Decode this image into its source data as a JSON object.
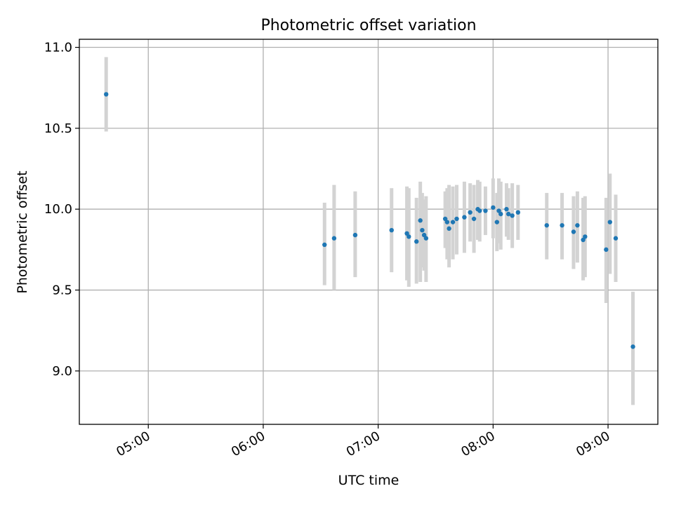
{
  "chart_data": {
    "type": "scatter",
    "title": "Photometric offset variation",
    "xlabel": "UTC time",
    "ylabel": "Photometric offset",
    "x_axis_kind": "time",
    "x_ticks": [
      "05:00",
      "06:00",
      "07:00",
      "08:00",
      "09:00"
    ],
    "y_ticks": [
      "9.0",
      "9.5",
      "10.0",
      "10.5",
      "11.0"
    ],
    "xlim": [
      "04:24",
      "09:26"
    ],
    "ylim": [
      8.67,
      11.05
    ],
    "grid": true,
    "colors": {
      "point": "#1f77b4",
      "errorbar": "#d3d3d3",
      "grid": "#b0b0b0"
    },
    "points": [
      {
        "x": "04:38",
        "y": 10.71,
        "ylo": 10.48,
        "yhi": 10.94
      },
      {
        "x": "06:32",
        "y": 9.78,
        "ylo": 9.53,
        "yhi": 10.04
      },
      {
        "x": "06:37",
        "y": 9.82,
        "ylo": 9.5,
        "yhi": 10.15
      },
      {
        "x": "06:48",
        "y": 9.84,
        "ylo": 9.58,
        "yhi": 10.11
      },
      {
        "x": "07:07",
        "y": 9.87,
        "ylo": 9.61,
        "yhi": 10.13
      },
      {
        "x": "07:15",
        "y": 9.85,
        "ylo": 9.56,
        "yhi": 10.14
      },
      {
        "x": "07:16",
        "y": 9.83,
        "ylo": 9.52,
        "yhi": 10.13
      },
      {
        "x": "07:20",
        "y": 9.8,
        "ylo": 9.54,
        "yhi": 10.07
      },
      {
        "x": "07:22",
        "y": 9.93,
        "ylo": 9.55,
        "yhi": 10.17
      },
      {
        "x": "07:23",
        "y": 9.87,
        "ylo": 9.64,
        "yhi": 10.1
      },
      {
        "x": "07:24",
        "y": 9.84,
        "ylo": 9.62,
        "yhi": 10.06
      },
      {
        "x": "07:25",
        "y": 9.82,
        "ylo": 9.55,
        "yhi": 10.08
      },
      {
        "x": "07:35",
        "y": 9.94,
        "ylo": 9.76,
        "yhi": 10.11
      },
      {
        "x": "07:36",
        "y": 9.92,
        "ylo": 9.69,
        "yhi": 10.13
      },
      {
        "x": "07:37",
        "y": 9.88,
        "ylo": 9.64,
        "yhi": 10.15
      },
      {
        "x": "07:39",
        "y": 9.92,
        "ylo": 9.69,
        "yhi": 10.14
      },
      {
        "x": "07:41",
        "y": 9.94,
        "ylo": 9.72,
        "yhi": 10.15
      },
      {
        "x": "07:45",
        "y": 9.95,
        "ylo": 9.73,
        "yhi": 10.17
      },
      {
        "x": "07:48",
        "y": 9.98,
        "ylo": 9.8,
        "yhi": 10.16
      },
      {
        "x": "07:50",
        "y": 9.94,
        "ylo": 9.73,
        "yhi": 10.15
      },
      {
        "x": "07:52",
        "y": 10.0,
        "ylo": 9.81,
        "yhi": 10.18
      },
      {
        "x": "07:53",
        "y": 9.99,
        "ylo": 9.8,
        "yhi": 10.17
      },
      {
        "x": "07:56",
        "y": 9.99,
        "ylo": 9.84,
        "yhi": 10.14
      },
      {
        "x": "08:00",
        "y": 10.01,
        "ylo": 9.82,
        "yhi": 10.19
      },
      {
        "x": "08:02",
        "y": 9.92,
        "ylo": 9.74,
        "yhi": 10.1
      },
      {
        "x": "08:03",
        "y": 9.99,
        "ylo": 9.79,
        "yhi": 10.19
      },
      {
        "x": "08:04",
        "y": 9.97,
        "ylo": 9.75,
        "yhi": 10.17
      },
      {
        "x": "08:07",
        "y": 10.0,
        "ylo": 9.83,
        "yhi": 10.16
      },
      {
        "x": "08:08",
        "y": 9.97,
        "ylo": 9.81,
        "yhi": 10.13
      },
      {
        "x": "08:10",
        "y": 9.96,
        "ylo": 9.76,
        "yhi": 10.16
      },
      {
        "x": "08:13",
        "y": 9.98,
        "ylo": 9.81,
        "yhi": 10.15
      },
      {
        "x": "08:28",
        "y": 9.9,
        "ylo": 9.69,
        "yhi": 10.1
      },
      {
        "x": "08:36",
        "y": 9.9,
        "ylo": 9.69,
        "yhi": 10.1
      },
      {
        "x": "08:42",
        "y": 9.86,
        "ylo": 9.63,
        "yhi": 10.08
      },
      {
        "x": "08:44",
        "y": 9.9,
        "ylo": 9.67,
        "yhi": 10.11
      },
      {
        "x": "08:47",
        "y": 9.81,
        "ylo": 9.56,
        "yhi": 10.07
      },
      {
        "x": "08:48",
        "y": 9.83,
        "ylo": 9.58,
        "yhi": 10.08
      },
      {
        "x": "08:59",
        "y": 9.75,
        "ylo": 9.42,
        "yhi": 10.07
      },
      {
        "x": "09:01",
        "y": 9.92,
        "ylo": 9.6,
        "yhi": 10.22
      },
      {
        "x": "09:04",
        "y": 9.82,
        "ylo": 9.55,
        "yhi": 10.09
      },
      {
        "x": "09:13",
        "y": 9.15,
        "ylo": 8.79,
        "yhi": 9.49
      }
    ]
  }
}
